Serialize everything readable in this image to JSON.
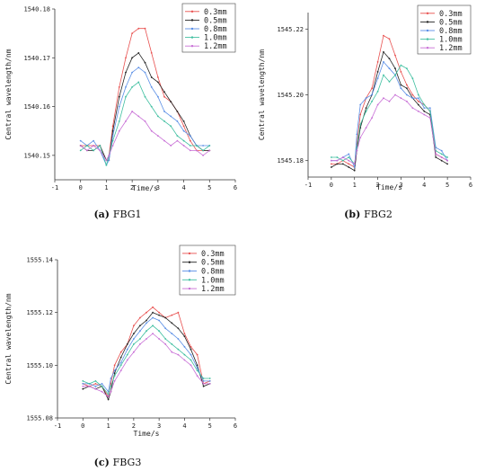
{
  "chart_data": [
    {
      "type": "line",
      "caption_letter": "(a)",
      "caption_text": "FBG1",
      "xlabel": "Time/s",
      "ylabel": "Central wavelength/nm",
      "xlim": [
        -1,
        6
      ],
      "ylim": [
        1540.145,
        1540.18
      ],
      "xticks": [
        -1,
        0,
        1,
        2,
        3,
        4,
        5,
        6
      ],
      "yticks": [
        1540.15,
        1540.16,
        1540.17,
        1540.18
      ],
      "ytick_labels": [
        "1540.15",
        "1540.16",
        "1540.17",
        "1540.18"
      ],
      "legend_position": "top-right",
      "x": [
        0,
        0.25,
        0.5,
        0.75,
        1.0,
        1.1,
        1.25,
        1.5,
        1.75,
        2.0,
        2.25,
        2.5,
        2.75,
        3.0,
        3.25,
        3.5,
        3.75,
        4.0,
        4.25,
        4.5,
        4.75,
        5.0
      ],
      "series": [
        {
          "name": "0.3mm",
          "color": "#e8504f",
          "values": [
            1540.152,
            1540.152,
            1540.152,
            1540.152,
            1540.149,
            1540.15,
            1540.156,
            1540.164,
            1540.17,
            1540.175,
            1540.176,
            1540.176,
            1540.171,
            1540.166,
            1540.162,
            1540.161,
            1540.159,
            1540.156,
            1540.153,
            1540.151,
            1540.151,
            1540.151
          ]
        },
        {
          "name": "0.5mm",
          "color": "#222222",
          "values": [
            1540.152,
            1540.151,
            1540.151,
            1540.152,
            1540.149,
            1540.149,
            1540.155,
            1540.162,
            1540.167,
            1540.17,
            1540.171,
            1540.169,
            1540.166,
            1540.165,
            1540.163,
            1540.161,
            1540.159,
            1540.157,
            1540.154,
            1540.152,
            1540.151,
            1540.151
          ]
        },
        {
          "name": "0.8mm",
          "color": "#5b8fe6",
          "values": [
            1540.153,
            1540.152,
            1540.153,
            1540.151,
            1540.148,
            1540.149,
            1540.154,
            1540.16,
            1540.164,
            1540.167,
            1540.168,
            1540.167,
            1540.164,
            1540.162,
            1540.159,
            1540.158,
            1540.157,
            1540.155,
            1540.154,
            1540.152,
            1540.152,
            1540.152
          ]
        },
        {
          "name": "1.0mm",
          "color": "#3fbfa0",
          "values": [
            1540.151,
            1540.152,
            1540.151,
            1540.152,
            1540.148,
            1540.15,
            1540.153,
            1540.157,
            1540.162,
            1540.164,
            1540.165,
            1540.162,
            1540.16,
            1540.158,
            1540.157,
            1540.156,
            1540.154,
            1540.153,
            1540.152,
            1540.152,
            1540.151,
            1540.152
          ]
        },
        {
          "name": "1.2mm",
          "color": "#c86fd6",
          "values": [
            1540.152,
            1540.151,
            1540.152,
            1540.151,
            1540.149,
            1540.15,
            1540.152,
            1540.155,
            1540.157,
            1540.159,
            1540.158,
            1540.157,
            1540.155,
            1540.154,
            1540.153,
            1540.152,
            1540.153,
            1540.152,
            1540.151,
            1540.151,
            1540.15,
            1540.151
          ]
        }
      ]
    },
    {
      "type": "line",
      "caption_letter": "(b)",
      "caption_text": "FBG2",
      "xlabel": "Time/s",
      "ylabel": "Central wavelength/nm",
      "xlim": [
        -1,
        6
      ],
      "ylim": [
        1545.175,
        1545.225
      ],
      "xticks": [
        -1,
        0,
        1,
        2,
        3,
        4,
        5,
        6
      ],
      "yticks": [
        1545.18,
        1545.2,
        1545.22
      ],
      "ytick_labels": [
        "1545.18",
        "1545.20",
        "1545.22"
      ],
      "legend_position": "top-right",
      "x": [
        0,
        0.25,
        0.5,
        0.75,
        1.0,
        1.1,
        1.25,
        1.5,
        1.75,
        2.0,
        2.25,
        2.5,
        2.75,
        3.0,
        3.25,
        3.5,
        3.75,
        4.0,
        4.25,
        4.5,
        4.75,
        5.0
      ],
      "series": [
        {
          "name": "0.3mm",
          "color": "#e8504f",
          "values": [
            1545.179,
            1545.179,
            1545.18,
            1545.179,
            1545.178,
            1545.185,
            1545.194,
            1545.199,
            1545.202,
            1545.21,
            1545.218,
            1545.217,
            1545.212,
            1545.207,
            1545.203,
            1545.2,
            1545.198,
            1545.197,
            1545.195,
            1545.182,
            1545.181,
            1545.18
          ]
        },
        {
          "name": "0.5mm",
          "color": "#222222",
          "values": [
            1545.178,
            1545.179,
            1545.179,
            1545.178,
            1545.177,
            1545.183,
            1545.19,
            1545.196,
            1545.2,
            1545.207,
            1545.213,
            1545.211,
            1545.208,
            1545.203,
            1545.202,
            1545.199,
            1545.197,
            1545.195,
            1545.194,
            1545.181,
            1545.18,
            1545.179
          ]
        },
        {
          "name": "0.8mm",
          "color": "#5b8fe6",
          "values": [
            1545.18,
            1545.18,
            1545.181,
            1545.182,
            1545.178,
            1545.188,
            1545.197,
            1545.199,
            1545.2,
            1545.205,
            1545.21,
            1545.208,
            1545.206,
            1545.202,
            1545.2,
            1545.199,
            1545.199,
            1545.196,
            1545.196,
            1545.184,
            1545.183,
            1545.18
          ]
        },
        {
          "name": "1.0mm",
          "color": "#3fbfa0",
          "values": [
            1545.181,
            1545.181,
            1545.18,
            1545.181,
            1545.179,
            1545.184,
            1545.191,
            1545.195,
            1545.198,
            1545.201,
            1545.206,
            1545.204,
            1545.206,
            1545.209,
            1545.208,
            1545.205,
            1545.2,
            1545.197,
            1545.195,
            1545.183,
            1545.182,
            1545.181
          ]
        },
        {
          "name": "1.2mm",
          "color": "#c86fd6",
          "values": [
            1545.18,
            1545.18,
            1545.181,
            1545.18,
            1545.179,
            1545.183,
            1545.187,
            1545.19,
            1545.193,
            1545.197,
            1545.199,
            1545.198,
            1545.2,
            1545.199,
            1545.198,
            1545.196,
            1545.195,
            1545.194,
            1545.193,
            1545.182,
            1545.181,
            1545.18
          ]
        }
      ]
    },
    {
      "type": "line",
      "caption_letter": "(c)",
      "caption_text": "FBG3",
      "xlabel": "Time/s",
      "ylabel": "Central wavelength/nm",
      "xlim": [
        -1,
        6
      ],
      "ylim": [
        1555.08,
        1555.14
      ],
      "xticks": [
        -1,
        0,
        1,
        2,
        3,
        4,
        5,
        6
      ],
      "yticks": [
        1555.08,
        1555.1,
        1555.12,
        1555.14
      ],
      "ytick_labels": [
        "1555.08",
        "1555.10",
        "1555.12",
        "1555.14"
      ],
      "legend_position": "top-right",
      "x": [
        0,
        0.25,
        0.5,
        0.75,
        1.0,
        1.1,
        1.25,
        1.5,
        1.75,
        2.0,
        2.25,
        2.5,
        2.75,
        3.0,
        3.25,
        3.5,
        3.75,
        4.0,
        4.25,
        4.5,
        4.75,
        5.0
      ],
      "series": [
        {
          "name": "0.3mm",
          "color": "#e8504f",
          "values": [
            1555.093,
            1555.092,
            1555.093,
            1555.092,
            1555.088,
            1555.093,
            1555.1,
            1555.105,
            1555.108,
            1555.115,
            1555.118,
            1555.12,
            1555.122,
            1555.12,
            1555.118,
            1555.119,
            1555.12,
            1555.112,
            1555.107,
            1555.104,
            1555.093,
            1555.094
          ]
        },
        {
          "name": "0.5mm",
          "color": "#222222",
          "values": [
            1555.091,
            1555.092,
            1555.091,
            1555.092,
            1555.087,
            1555.09,
            1555.097,
            1555.103,
            1555.108,
            1555.112,
            1555.115,
            1555.117,
            1555.12,
            1555.119,
            1555.118,
            1555.116,
            1555.114,
            1555.111,
            1555.106,
            1555.1,
            1555.092,
            1555.093
          ]
        },
        {
          "name": "0.8mm",
          "color": "#5b8fe6",
          "values": [
            1555.093,
            1555.093,
            1555.092,
            1555.093,
            1555.09,
            1555.095,
            1555.098,
            1555.101,
            1555.106,
            1555.11,
            1555.113,
            1555.116,
            1555.118,
            1555.117,
            1555.114,
            1555.112,
            1555.11,
            1555.107,
            1555.104,
            1555.099,
            1555.094,
            1555.094
          ]
        },
        {
          "name": "1.0mm",
          "color": "#3fbfa0",
          "values": [
            1555.094,
            1555.093,
            1555.094,
            1555.092,
            1555.089,
            1555.092,
            1555.096,
            1555.1,
            1555.104,
            1555.108,
            1555.11,
            1555.113,
            1555.115,
            1555.113,
            1555.11,
            1555.108,
            1555.106,
            1555.104,
            1555.102,
            1555.098,
            1555.095,
            1555.095
          ]
        },
        {
          "name": "1.2mm",
          "color": "#c86fd6",
          "values": [
            1555.092,
            1555.092,
            1555.091,
            1555.09,
            1555.088,
            1555.09,
            1555.094,
            1555.098,
            1555.102,
            1555.105,
            1555.108,
            1555.11,
            1555.112,
            1555.11,
            1555.108,
            1555.105,
            1555.104,
            1555.102,
            1555.1,
            1555.096,
            1555.093,
            1555.093
          ]
        }
      ]
    }
  ]
}
